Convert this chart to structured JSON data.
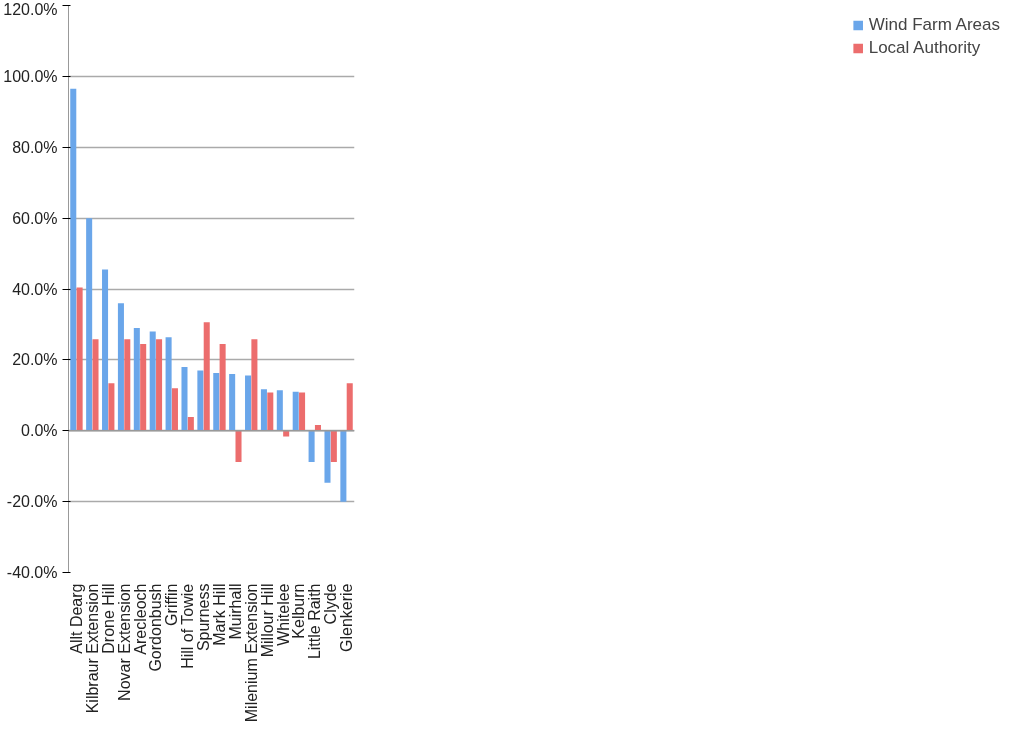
{
  "chart_data": {
    "type": "bar",
    "categories": [
      "Allt Dearg",
      "Kilbraur Extension",
      "Drone Hill",
      "Novar Extension",
      "Arecleoch",
      "Gordonbush",
      "Griffin",
      "Hill of Towie",
      "Spurness",
      "Mark Hill",
      "Muirhall",
      "Milenium Extension",
      "Millour Hill",
      "Whitelee",
      "Kelburn",
      "Little Raith",
      "Clyde",
      "Glenkerie"
    ],
    "series": [
      {
        "name": "Wind Farm Areas",
        "color": "#6aa6ea",
        "values": [
          96.5,
          60,
          45.5,
          36,
          29,
          28,
          26.4,
          18,
          17,
          16.3,
          16,
          15.6,
          11.7,
          11.4,
          11,
          -8.8,
          -14.7,
          -20
        ]
      },
      {
        "name": "Local Authority",
        "color": "#ec6d6d",
        "values": [
          40.4,
          25.8,
          13.4,
          25.8,
          24.5,
          25.8,
          12,
          3.9,
          30.6,
          24.5,
          -8.8,
          25.8,
          10.8,
          -1.6,
          10.8,
          1.6,
          -8.8,
          13.4
        ]
      }
    ],
    "ylim": [
      -40,
      120
    ],
    "yticks": [
      {
        "value": -40,
        "label": "-40.0%"
      },
      {
        "value": -20,
        "label": "-20.0%"
      },
      {
        "value": 0,
        "label": "0.0%"
      },
      {
        "value": 20,
        "label": "20.0%"
      },
      {
        "value": 40,
        "label": "40.0%"
      },
      {
        "value": 60,
        "label": "60.0%"
      },
      {
        "value": 80,
        "label": "80.0%"
      },
      {
        "value": 100,
        "label": "100.0%"
      },
      {
        "value": 120,
        "label": "120.0%"
      }
    ],
    "grid": "y",
    "legend": "right"
  }
}
